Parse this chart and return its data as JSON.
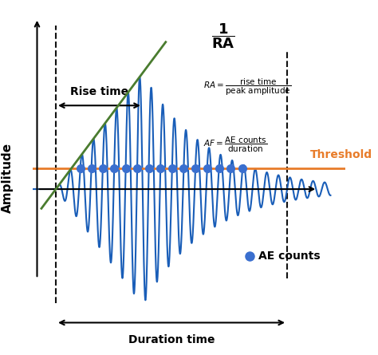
{
  "background_color": "#ffffff",
  "waveform_color": "#1a5eb8",
  "envelope_color": "#4a7c2f",
  "threshold_color": "#e87c2a",
  "threshold_value": 0.18,
  "peak_x": 3.5,
  "peak_amplitude": 1.0,
  "start_x": 0.5,
  "end_x": 8.5,
  "xlim": [
    -0.3,
    10.5
  ],
  "ylim": [
    -1.4,
    1.6
  ],
  "ylabel": "Amplitude",
  "rise_time_label": "Rise time",
  "duration_label": "Duration time",
  "threshold_label": "Threshold",
  "ae_counts_label": "AE counts",
  "dot_color": "#3a6fcf",
  "dashed_color": "#111111",
  "waveform_freq": 2.5,
  "waveform_decay": 0.45
}
